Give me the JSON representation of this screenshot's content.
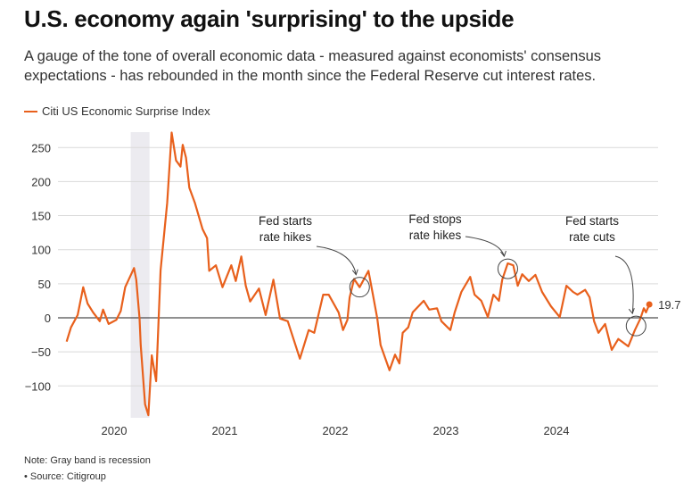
{
  "title": "U.S. economy again 'surprising' to the upside",
  "subtitle": "A gauge of the tone of overall economic data - measured against economists' consensus expectations - has rebounded in the month since the Federal Reserve cut interest rates.",
  "notes": [
    "Note: Gray band is recession",
    "• Source: Citigroup"
  ],
  "colors": {
    "series": "#e8601c",
    "recession": "#ecebf0",
    "grid": "#d9d9d9",
    "zero": "#222222"
  },
  "chart_data": {
    "type": "line",
    "title": "U.S. economy again 'surprising' to the upside",
    "xlabel": "",
    "ylabel": "",
    "legend": "top-left",
    "grid": true,
    "xlim": [
      2019.45,
      2024.9
    ],
    "ylim": [
      -150,
      270
    ],
    "x_ticks": [
      2020,
      2021,
      2022,
      2023,
      2024
    ],
    "x_tick_labels": [
      "2020",
      "2021",
      "2022",
      "2023",
      "2024"
    ],
    "y_ticks": [
      -100,
      -50,
      0,
      50,
      100,
      150,
      200,
      250
    ],
    "y_tick_labels": [
      "−100",
      "−50",
      "0",
      "50",
      "100",
      "150",
      "200",
      "250"
    ],
    "recession": [
      2020.15,
      2020.32
    ],
    "series": [
      {
        "name": "Citi US Economic Surprise Index",
        "points": [
          [
            2019.57,
            -35
          ],
          [
            2019.61,
            -14
          ],
          [
            2019.67,
            4
          ],
          [
            2019.72,
            45
          ],
          [
            2019.76,
            21
          ],
          [
            2019.81,
            8
          ],
          [
            2019.87,
            -5
          ],
          [
            2019.9,
            12
          ],
          [
            2019.95,
            -9
          ],
          [
            2020.02,
            -3
          ],
          [
            2020.06,
            10
          ],
          [
            2020.1,
            45
          ],
          [
            2020.18,
            73
          ],
          [
            2020.2,
            56
          ],
          [
            2020.23,
            -1
          ],
          [
            2020.24,
            -40
          ],
          [
            2020.28,
            -127
          ],
          [
            2020.31,
            -143
          ],
          [
            2020.34,
            -55
          ],
          [
            2020.38,
            -93
          ],
          [
            2020.42,
            70
          ],
          [
            2020.48,
            169
          ],
          [
            2020.52,
            272
          ],
          [
            2020.56,
            231
          ],
          [
            2020.6,
            222
          ],
          [
            2020.62,
            254
          ],
          [
            2020.65,
            235
          ],
          [
            2020.68,
            191
          ],
          [
            2020.73,
            169
          ],
          [
            2020.8,
            130
          ],
          [
            2020.84,
            117
          ],
          [
            2020.86,
            69
          ],
          [
            2020.92,
            77
          ],
          [
            2020.98,
            45
          ],
          [
            2021.06,
            77
          ],
          [
            2021.1,
            54
          ],
          [
            2021.15,
            90
          ],
          [
            2021.19,
            47
          ],
          [
            2021.23,
            24
          ],
          [
            2021.31,
            43
          ],
          [
            2021.37,
            4
          ],
          [
            2021.44,
            56
          ],
          [
            2021.5,
            -1
          ],
          [
            2021.57,
            -5
          ],
          [
            2021.68,
            -60
          ],
          [
            2021.76,
            -18
          ],
          [
            2021.81,
            -22
          ],
          [
            2021.89,
            34
          ],
          [
            2021.94,
            34
          ],
          [
            2022.03,
            8
          ],
          [
            2022.07,
            -18
          ],
          [
            2022.11,
            -3
          ],
          [
            2022.13,
            30
          ],
          [
            2022.17,
            57
          ],
          [
            2022.22,
            45
          ],
          [
            2022.3,
            69
          ],
          [
            2022.34,
            34
          ],
          [
            2022.38,
            -1
          ],
          [
            2022.41,
            -40
          ],
          [
            2022.49,
            -77
          ],
          [
            2022.54,
            -54
          ],
          [
            2022.58,
            -67
          ],
          [
            2022.61,
            -22
          ],
          [
            2022.66,
            -14
          ],
          [
            2022.7,
            8
          ],
          [
            2022.8,
            25
          ],
          [
            2022.85,
            12
          ],
          [
            2022.92,
            14
          ],
          [
            2022.96,
            -5
          ],
          [
            2023.04,
            -18
          ],
          [
            2023.08,
            8
          ],
          [
            2023.14,
            38
          ],
          [
            2023.22,
            60
          ],
          [
            2023.26,
            34
          ],
          [
            2023.32,
            25
          ],
          [
            2023.38,
            1
          ],
          [
            2023.43,
            34
          ],
          [
            2023.48,
            25
          ],
          [
            2023.51,
            56
          ],
          [
            2023.56,
            80
          ],
          [
            2023.61,
            77
          ],
          [
            2023.65,
            47
          ],
          [
            2023.69,
            64
          ],
          [
            2023.75,
            54
          ],
          [
            2023.81,
            63
          ],
          [
            2023.87,
            38
          ],
          [
            2023.95,
            17
          ],
          [
            2024.03,
            1
          ],
          [
            2024.09,
            47
          ],
          [
            2024.15,
            38
          ],
          [
            2024.19,
            34
          ],
          [
            2024.26,
            41
          ],
          [
            2024.3,
            30
          ],
          [
            2024.34,
            -5
          ],
          [
            2024.38,
            -22
          ],
          [
            2024.44,
            -9
          ],
          [
            2024.5,
            -47
          ],
          [
            2024.56,
            -31
          ],
          [
            2024.65,
            -42
          ],
          [
            2024.71,
            -18
          ],
          [
            2024.76,
            -1
          ],
          [
            2024.79,
            14
          ],
          [
            2024.81,
            8
          ],
          [
            2024.84,
            19.7
          ]
        ]
      }
    ],
    "last_value_label": "19.7",
    "annotations": [
      {
        "lines": [
          "Fed starts",
          "rate hikes"
        ],
        "point": [
          2022.22,
          45
        ]
      },
      {
        "lines": [
          "Fed stops",
          "rate hikes"
        ],
        "point": [
          2023.56,
          72
        ]
      },
      {
        "lines": [
          "Fed starts",
          "rate cuts"
        ],
        "point": [
          2024.72,
          -12
        ]
      }
    ]
  }
}
